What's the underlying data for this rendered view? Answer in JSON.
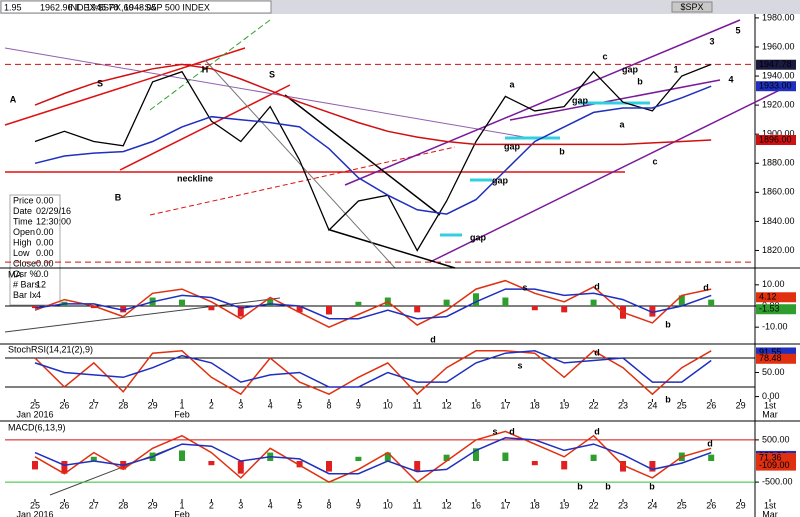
{
  "window": {
    "title": "INDEX:$SPX,60 -- S&P 500 INDEX",
    "symbol": "$SPX",
    "quote": [
      "1.95",
      "1962.96",
      "L",
      "1945.78",
      "1948.05"
    ]
  },
  "info_box": {
    "labels": [
      "Price",
      "Date",
      "Time",
      "Open",
      "High",
      "Low",
      "Close",
      "Csr %",
      "# Bars",
      "Bar Ix"
    ],
    "values": [
      "0.00",
      "02/29/16",
      "12:30:00",
      "0.00",
      "0.00",
      "0.00",
      "0.00",
      "0.0",
      "12",
      "4"
    ]
  },
  "chart_data": [
    {
      "type": "line",
      "categories": [
        "25",
        "26",
        "27",
        "28",
        "29",
        "1",
        "2",
        "3",
        "4",
        "5",
        "8",
        "9",
        "10",
        "11",
        "12",
        "16",
        "17",
        "18",
        "19",
        "22",
        "23",
        "24",
        "25",
        "26",
        "29",
        "1st"
      ],
      "months": [
        "Jan 2016",
        null,
        null,
        null,
        null,
        "Feb",
        null,
        null,
        null,
        null,
        null,
        null,
        null,
        null,
        null,
        null,
        null,
        null,
        null,
        null,
        null,
        null,
        null,
        null,
        null,
        "Mar"
      ],
      "ylim": [
        1810,
        1982
      ],
      "yticks": [
        {
          "value": 1980,
          "label": "1980.00"
        },
        {
          "value": 1960,
          "label": "1960.00"
        },
        {
          "value": 1940,
          "label": "1940.00"
        },
        {
          "value": 1920,
          "label": "1920.00"
        },
        {
          "value": 1900,
          "label": "1900.00"
        },
        {
          "value": 1880,
          "label": "1880.00"
        },
        {
          "value": 1860,
          "label": "1860.00"
        },
        {
          "value": 1840,
          "label": "1840.00"
        },
        {
          "value": 1820,
          "label": "1820.00"
        }
      ],
      "series": [
        {
          "color": "#000000",
          "values": [
            1895,
            1902,
            1895,
            1892,
            1936,
            1943,
            1909,
            1895,
            1919,
            1882,
            1834,
            1854,
            1858,
            1820,
            1854,
            1895,
            1926,
            1916,
            1919,
            1943,
            1922,
            1916,
            1940,
            1948,
            null,
            null
          ]
        },
        {
          "color": "#1f2fbf",
          "values": [
            1880,
            1885,
            1887,
            1888,
            1895,
            1905,
            1912,
            1910,
            1908,
            1905,
            1890,
            1870,
            1858,
            1848,
            1845,
            1855,
            1875,
            1895,
            1905,
            1915,
            1918,
            1918,
            1925,
            1933,
            null,
            null
          ]
        },
        {
          "color": "#d01010",
          "values": [
            1920,
            1928,
            1935,
            1940,
            1945,
            1948,
            1945,
            1938,
            1930,
            1922,
            1915,
            1908,
            1902,
            1898,
            1895,
            1893,
            1893,
            1893,
            1893,
            1893,
            1893,
            1894,
            1895,
            1896,
            null,
            null
          ]
        }
      ],
      "ref_lines": [
        {
          "value": 1948,
          "color": "#d01010"
        },
        {
          "value": 1812,
          "color": "#d01010"
        }
      ],
      "last_values": [
        {
          "value": 1947.78,
          "color": "#1a1a40"
        },
        {
          "value": 1933,
          "label": "1933.00",
          "color": "#1f2fbf"
        },
        {
          "value": 1896,
          "label": "1896.00",
          "color": "#d01010"
        }
      ],
      "annotations": [
        "S",
        "H",
        "S",
        "neckline",
        "A",
        "B",
        "a",
        "b",
        "c",
        "a",
        "b",
        "c",
        "gap",
        "gap",
        "gap",
        "gap",
        "gap",
        "1",
        "3",
        "4",
        "5"
      ]
    },
    {
      "type": "line",
      "title": "MA",
      "ylim": [
        -17,
        17
      ],
      "yticks": [
        {
          "value": 10,
          "label": "10.00"
        },
        {
          "value": 0,
          "label": "0.00"
        },
        {
          "value": -10,
          "label": "-10.00"
        }
      ],
      "color_up": "#2e9e2e",
      "color_down": "#e02020",
      "series": [
        {
          "style": "histogram",
          "values": [
            -1,
            2,
            -1,
            -3,
            4,
            3,
            -2,
            -5,
            3,
            -3,
            -4,
            2,
            4,
            -3,
            3,
            6,
            4,
            -2,
            -3,
            3,
            -6,
            -5,
            5,
            3,
            null,
            null
          ]
        },
        {
          "color": "#e03010",
          "values": [
            -2,
            3,
            0,
            -5,
            6,
            8,
            2,
            -6,
            4,
            -3,
            -10,
            -4,
            2,
            -9,
            -2,
            8,
            12,
            6,
            2,
            9,
            -3,
            -8,
            5,
            8,
            null,
            null
          ]
        },
        {
          "color": "#1f2fbf",
          "values": [
            -1,
            1,
            1,
            -2,
            2,
            5,
            4,
            -1,
            1,
            0,
            -6,
            -6,
            -2,
            -6,
            -5,
            2,
            8,
            8,
            5,
            6,
            3,
            -3,
            0,
            5,
            null,
            null
          ]
        }
      ],
      "ref_lines": [
        {
          "value": 0,
          "color": "#000000"
        }
      ],
      "last_values": [
        {
          "value": 4.12,
          "color": "#e03010"
        },
        {
          "value": -1.53,
          "color": "#2e9e2e"
        }
      ],
      "annotations": [
        "s",
        "d",
        "d",
        "d",
        "b"
      ]
    },
    {
      "type": "line",
      "title": "StochRSI(14,21(2),9)",
      "ylim": [
        -5,
        105
      ],
      "yticks": [
        {
          "value": 50,
          "label": "50.00"
        },
        {
          "value": 0,
          "label": "0.00"
        }
      ],
      "series": [
        {
          "color": "#e03010",
          "values": [
            80,
            20,
            70,
            10,
            90,
            95,
            40,
            5,
            80,
            30,
            5,
            40,
            70,
            5,
            60,
            95,
            95,
            90,
            40,
            95,
            60,
            5,
            60,
            95,
            null,
            null
          ]
        },
        {
          "color": "#1f2fbf",
          "values": [
            70,
            50,
            45,
            40,
            60,
            85,
            70,
            30,
            45,
            50,
            20,
            20,
            50,
            30,
            30,
            70,
            90,
            95,
            70,
            75,
            80,
            30,
            30,
            75,
            null,
            null
          ]
        }
      ],
      "ref_lines": [
        {
          "value": 80,
          "color": "#000000"
        },
        {
          "value": 20,
          "color": "#000000"
        }
      ],
      "last_values": [
        {
          "value": 91.55,
          "color": "#1f2fbf"
        },
        {
          "value": 78.48,
          "color": "#e03010"
        }
      ],
      "annotations": [
        "s",
        "d",
        "b"
      ]
    },
    {
      "type": "line",
      "title": "MACD(6,13,9)",
      "ylim": [
        -900,
        900
      ],
      "yticks": [
        {
          "value": 500,
          "label": "500.00"
        },
        {
          "value": -500,
          "label": "-500.00"
        }
      ],
      "color_up": "#2e9e2e",
      "color_down": "#e02020",
      "series": [
        {
          "style": "histogram",
          "values": [
            -200,
            -300,
            100,
            -200,
            200,
            250,
            -100,
            -300,
            200,
            -150,
            -250,
            100,
            200,
            -250,
            150,
            300,
            200,
            -100,
            -200,
            150,
            -250,
            -250,
            200,
            150,
            null,
            null
          ]
        },
        {
          "color": "#e03010",
          "values": [
            100,
            -300,
            200,
            -200,
            300,
            600,
            200,
            -400,
            300,
            -100,
            -500,
            -200,
            200,
            -500,
            0,
            500,
            700,
            400,
            100,
            600,
            -100,
            -400,
            100,
            300,
            null,
            null
          ]
        },
        {
          "color": "#1f2fbf",
          "values": [
            200,
            -100,
            0,
            -100,
            100,
            400,
            350,
            0,
            100,
            50,
            -300,
            -300,
            0,
            -250,
            -200,
            250,
            550,
            500,
            250,
            400,
            150,
            -200,
            -50,
            200,
            null,
            null
          ]
        }
      ],
      "ref_lines": [
        {
          "value": 500,
          "color": "#d01010"
        },
        {
          "value": -500,
          "color": "#2ec02e"
        }
      ],
      "last_values": [
        {
          "value": 120.32,
          "color": "#1f2fbf"
        },
        {
          "value": 71.36,
          "color": "#e03010"
        },
        {
          "value": -109,
          "label": "-109.00",
          "color": "#e03010"
        }
      ],
      "annotations": [
        "s",
        "d",
        "d",
        "d",
        "b",
        "b",
        "b"
      ]
    }
  ]
}
